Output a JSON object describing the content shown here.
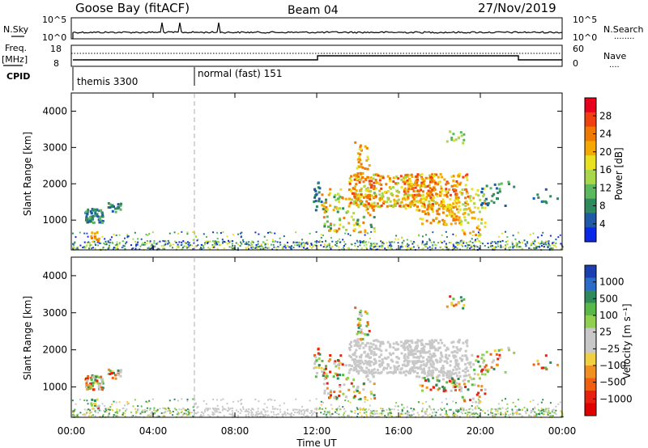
{
  "header": {
    "station": "Goose Bay (fitACF)",
    "beam": "Beam 04",
    "date": "27/Nov/2019"
  },
  "top_panels": {
    "nsky_label": "N.Sky",
    "nsearch_label": "N.Search",
    "nsearch_line": "........",
    "noise_ticks_left": [
      "10^5",
      "10^0"
    ],
    "noise_ticks_right": [
      "10^5",
      "10^0"
    ],
    "freq_label_1": "Freq.",
    "freq_label_2": "[MHz]",
    "freq_ticks": [
      "18",
      "8"
    ],
    "nave_label": "Nave",
    "nave_line": "....",
    "nave_ticks": [
      "60",
      "0"
    ],
    "cpid_label": "CPID",
    "cpid_segments": [
      "themis 3300",
      "normal (fast) 151"
    ],
    "cpid_transition_hour": 6
  },
  "chart_data": [
    {
      "type": "heatmap",
      "name": "power",
      "ylabel": "Slant Range [km]",
      "xlabel": "Time UT",
      "xlim_hours": [
        0,
        24
      ],
      "ylim_km": [
        180,
        4500
      ],
      "y_ticks": [
        "1000",
        "2000",
        "3000",
        "4000"
      ],
      "x_ticks": [
        "00:00",
        "04:00",
        "08:00",
        "12:00",
        "16:00",
        "20:00",
        "00:00"
      ],
      "colorbar": {
        "label": "Power [dB]",
        "ticks": [
          "28",
          "24",
          "20",
          "16",
          "12",
          "8",
          "4"
        ],
        "colors": [
          "#e8001c",
          "#f04010",
          "#f07a00",
          "#f4a800",
          "#e8e020",
          "#a8d84a",
          "#5cb85c",
          "#2f8a5e",
          "#1e5aa8",
          "#0a28e8"
        ]
      }
    },
    {
      "type": "heatmap",
      "name": "velocity",
      "ylabel": "Slant Range [km]",
      "xlabel": "Time UT",
      "xlim_hours": [
        0,
        24
      ],
      "ylim_km": [
        180,
        4500
      ],
      "y_ticks": [
        "1000",
        "2000",
        "3000",
        "4000"
      ],
      "x_ticks": [
        "00:00",
        "04:00",
        "08:00",
        "12:00",
        "16:00",
        "20:00",
        "00:00"
      ],
      "colorbar": {
        "label": "Velocity [m s⁻¹]",
        "ticks": [
          "1000",
          "500",
          "100",
          "25",
          "−25",
          "−100",
          "−500",
          "−1000"
        ],
        "colors": [
          "#1a3fb0",
          "#2a6cc8",
          "#2e8a5a",
          "#58b848",
          "#90d050",
          "#c8c8c8",
          "#c8c8c8",
          "#f0d040",
          "#f09020",
          "#f06010",
          "#e82010",
          "#e00000"
        ]
      }
    }
  ]
}
